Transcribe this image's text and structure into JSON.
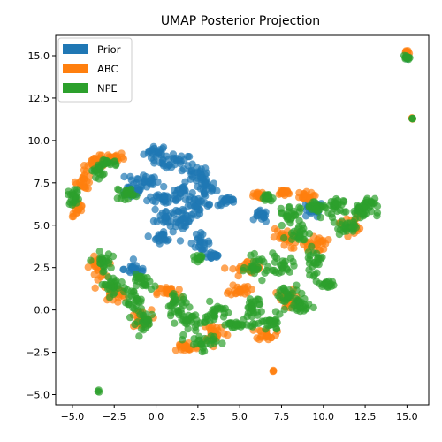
{
  "chart_data": {
    "type": "scatter",
    "title": "UMAP Posterior Projection",
    "xlabel": "",
    "ylabel": "",
    "xlim": [
      -6.0,
      16.3
    ],
    "ylim": [
      -5.6,
      16.2
    ],
    "xticks": [
      -5.0,
      -2.5,
      0.0,
      2.5,
      5.0,
      7.5,
      10.0,
      12.5,
      15.0
    ],
    "xtick_labels": [
      "−5.0",
      "−2.5",
      "0.0",
      "2.5",
      "5.0",
      "7.5",
      "10.0",
      "12.5",
      "15.0"
    ],
    "yticks": [
      -5.0,
      -2.5,
      0.0,
      2.5,
      5.0,
      7.5,
      10.0,
      12.5,
      15.0
    ],
    "ytick_labels": [
      "−5.0",
      "−2.5",
      "0.0",
      "2.5",
      "5.0",
      "7.5",
      "10.0",
      "12.5",
      "15.0"
    ],
    "grid": false,
    "legend_position": "top-left",
    "series": [
      {
        "name": "Prior",
        "color": "#1f77b4",
        "clusters": [
          {
            "x": 0.0,
            "y": 9.3,
            "spread": [
              0.6,
              0.4
            ]
          },
          {
            "x": 1.2,
            "y": 8.7,
            "spread": [
              0.8,
              0.4
            ]
          },
          {
            "x": 2.4,
            "y": 8.0,
            "spread": [
              0.6,
              0.4
            ]
          },
          {
            "x": 3.0,
            "y": 7.2,
            "spread": [
              0.5,
              0.5
            ]
          },
          {
            "x": -0.8,
            "y": 7.6,
            "spread": [
              0.8,
              0.4
            ]
          },
          {
            "x": -1.5,
            "y": 7.0,
            "spread": [
              0.7,
              0.3
            ]
          },
          {
            "x": 0.5,
            "y": 6.6,
            "spread": [
              0.8,
              0.3
            ]
          },
          {
            "x": 1.5,
            "y": 7.0,
            "spread": [
              0.5,
              0.4
            ]
          },
          {
            "x": 0.6,
            "y": 5.5,
            "spread": [
              0.6,
              0.6
            ]
          },
          {
            "x": 0.4,
            "y": 4.3,
            "spread": [
              0.5,
              0.3
            ]
          },
          {
            "x": 1.7,
            "y": 5.3,
            "spread": [
              0.4,
              0.6
            ]
          },
          {
            "x": 2.6,
            "y": 6.2,
            "spread": [
              0.6,
              0.4
            ]
          },
          {
            "x": 2.6,
            "y": 4.0,
            "spread": [
              0.5,
              0.4
            ]
          },
          {
            "x": 4.3,
            "y": 6.4,
            "spread": [
              0.5,
              0.2
            ]
          },
          {
            "x": 3.4,
            "y": 3.2,
            "spread": [
              0.4,
              0.2
            ]
          },
          {
            "x": -1.2,
            "y": 2.4,
            "spread": [
              0.6,
              0.3
            ]
          },
          {
            "x": 9.3,
            "y": 5.9,
            "spread": [
              0.6,
              0.4
            ]
          },
          {
            "x": 6.3,
            "y": 5.5,
            "spread": [
              0.3,
              0.3
            ]
          },
          {
            "x": 15.0,
            "y": 14.9,
            "spread": [
              0.1,
              0.1
            ]
          }
        ]
      },
      {
        "name": "ABC",
        "color": "#ff7f0e",
        "clusters": [
          {
            "x": -3.5,
            "y": 8.7,
            "spread": [
              0.6,
              0.3
            ]
          },
          {
            "x": -2.4,
            "y": 9.0,
            "spread": [
              0.5,
              0.2
            ]
          },
          {
            "x": -4.3,
            "y": 7.6,
            "spread": [
              0.4,
              0.4
            ]
          },
          {
            "x": -4.7,
            "y": 6.0,
            "spread": [
              0.3,
              0.4
            ]
          },
          {
            "x": -3.5,
            "y": 2.5,
            "spread": [
              0.4,
              0.5
            ]
          },
          {
            "x": -2.5,
            "y": 1.0,
            "spread": [
              0.6,
              0.4
            ]
          },
          {
            "x": -1.0,
            "y": -0.6,
            "spread": [
              0.6,
              0.5
            ]
          },
          {
            "x": 0.8,
            "y": 1.0,
            "spread": [
              0.6,
              0.4
            ]
          },
          {
            "x": 1.8,
            "y": -2.2,
            "spread": [
              0.6,
              0.3
            ]
          },
          {
            "x": 3.5,
            "y": -1.3,
            "spread": [
              0.6,
              0.5
            ]
          },
          {
            "x": 5.5,
            "y": 2.4,
            "spread": [
              0.8,
              0.4
            ]
          },
          {
            "x": 5.0,
            "y": 1.2,
            "spread": [
              0.5,
              0.3
            ]
          },
          {
            "x": 6.6,
            "y": -1.4,
            "spread": [
              0.5,
              0.3
            ]
          },
          {
            "x": 7.6,
            "y": 6.9,
            "spread": [
              0.4,
              0.2
            ]
          },
          {
            "x": 8.8,
            "y": 6.7,
            "spread": [
              0.5,
              0.2
            ]
          },
          {
            "x": 7.7,
            "y": 4.2,
            "spread": [
              0.6,
              0.5
            ]
          },
          {
            "x": 9.5,
            "y": 3.9,
            "spread": [
              0.6,
              0.4
            ]
          },
          {
            "x": 11.6,
            "y": 5.0,
            "spread": [
              0.5,
              0.5
            ]
          },
          {
            "x": 7.9,
            "y": 0.6,
            "spread": [
              0.6,
              0.5
            ]
          },
          {
            "x": 6.2,
            "y": 6.7,
            "spread": [
              0.3,
              0.2
            ]
          },
          {
            "x": 7.0,
            "y": -3.6,
            "spread": [
              0.05,
              0.05
            ]
          },
          {
            "x": 15.0,
            "y": 15.2,
            "spread": [
              0.1,
              0.1
            ]
          },
          {
            "x": 15.3,
            "y": 11.3,
            "spread": [
              0.05,
              0.05
            ]
          }
        ]
      },
      {
        "name": "NPE",
        "color": "#2ca02c",
        "clusters": [
          {
            "x": -2.8,
            "y": 8.7,
            "spread": [
              0.5,
              0.2
            ]
          },
          {
            "x": -3.5,
            "y": 8.2,
            "spread": [
              0.3,
              0.3
            ]
          },
          {
            "x": -4.9,
            "y": 6.7,
            "spread": [
              0.3,
              0.4
            ]
          },
          {
            "x": -3.2,
            "y": 2.8,
            "spread": [
              0.4,
              0.5
            ]
          },
          {
            "x": -2.6,
            "y": 1.5,
            "spread": [
              0.6,
              0.4
            ]
          },
          {
            "x": -1.4,
            "y": 0.5,
            "spread": [
              0.5,
              0.6
            ]
          },
          {
            "x": -0.6,
            "y": -0.7,
            "spread": [
              0.5,
              0.5
            ]
          },
          {
            "x": -0.7,
            "y": 1.6,
            "spread": [
              0.6,
              0.4
            ]
          },
          {
            "x": -1.8,
            "y": 6.9,
            "spread": [
              0.4,
              0.3
            ]
          },
          {
            "x": 1.2,
            "y": 0.3,
            "spread": [
              0.6,
              0.5
            ]
          },
          {
            "x": 2.1,
            "y": -0.7,
            "spread": [
              0.7,
              0.6
            ]
          },
          {
            "x": 2.8,
            "y": -1.9,
            "spread": [
              0.7,
              0.4
            ]
          },
          {
            "x": 3.6,
            "y": -0.3,
            "spread": [
              0.6,
              0.6
            ]
          },
          {
            "x": 4.8,
            "y": -0.9,
            "spread": [
              0.6,
              0.2
            ]
          },
          {
            "x": 5.8,
            "y": 0.2,
            "spread": [
              0.5,
              0.7
            ]
          },
          {
            "x": 6.0,
            "y": 2.5,
            "spread": [
              0.5,
              0.5
            ]
          },
          {
            "x": 6.9,
            "y": -0.8,
            "spread": [
              0.5,
              0.4
            ]
          },
          {
            "x": 7.8,
            "y": 0.8,
            "spread": [
              0.6,
              0.6
            ]
          },
          {
            "x": 8.6,
            "y": 0.2,
            "spread": [
              0.6,
              0.5
            ]
          },
          {
            "x": 7.5,
            "y": 2.6,
            "spread": [
              0.6,
              0.5
            ]
          },
          {
            "x": 9.4,
            "y": 2.8,
            "spread": [
              0.4,
              0.6
            ]
          },
          {
            "x": 8.6,
            "y": 4.6,
            "spread": [
              0.6,
              0.5
            ]
          },
          {
            "x": 8.0,
            "y": 5.7,
            "spread": [
              0.5,
              0.4
            ]
          },
          {
            "x": 9.6,
            "y": 6.1,
            "spread": [
              0.6,
              0.3
            ]
          },
          {
            "x": 10.6,
            "y": 6.0,
            "spread": [
              0.5,
              0.6
            ]
          },
          {
            "x": 12.2,
            "y": 5.8,
            "spread": [
              0.6,
              0.4
            ]
          },
          {
            "x": 11.4,
            "y": 4.8,
            "spread": [
              0.5,
              0.3
            ]
          },
          {
            "x": 12.6,
            "y": 6.2,
            "spread": [
              0.4,
              0.3
            ]
          },
          {
            "x": 10.2,
            "y": 1.5,
            "spread": [
              0.4,
              0.2
            ]
          },
          {
            "x": 6.6,
            "y": 6.6,
            "spread": [
              0.3,
              0.2
            ]
          },
          {
            "x": 2.6,
            "y": 3.1,
            "spread": [
              0.3,
              0.2
            ]
          },
          {
            "x": -3.4,
            "y": -4.8,
            "spread": [
              0.05,
              0.05
            ]
          },
          {
            "x": 15.0,
            "y": 14.9,
            "spread": [
              0.12,
              0.1
            ]
          },
          {
            "x": 15.3,
            "y": 11.3,
            "spread": [
              0.05,
              0.05
            ]
          }
        ]
      }
    ]
  }
}
